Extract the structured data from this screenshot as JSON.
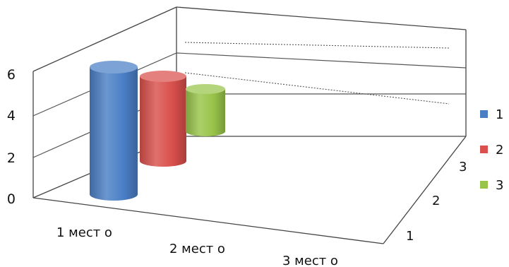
{
  "chart_data": {
    "type": "bar",
    "subtype": "3d-cylinder",
    "title": "",
    "categories": [
      "1 мест о",
      "2 мест о",
      "3 мест о"
    ],
    "depth_labels": [
      "1",
      "2",
      "3"
    ],
    "y_ticks": [
      "0",
      "2",
      "4",
      "6"
    ],
    "ylim": [
      0,
      6
    ],
    "series": [
      {
        "name": "1",
        "color": "#4a7fc6",
        "values": [
          6,
          null,
          null
        ]
      },
      {
        "name": "2",
        "color": "#d9504c",
        "values": [
          4,
          null,
          null
        ]
      },
      {
        "name": "3",
        "color": "#98c44a",
        "values": [
          2,
          null,
          null
        ]
      }
    ],
    "legend_position": "right",
    "grid": true
  }
}
